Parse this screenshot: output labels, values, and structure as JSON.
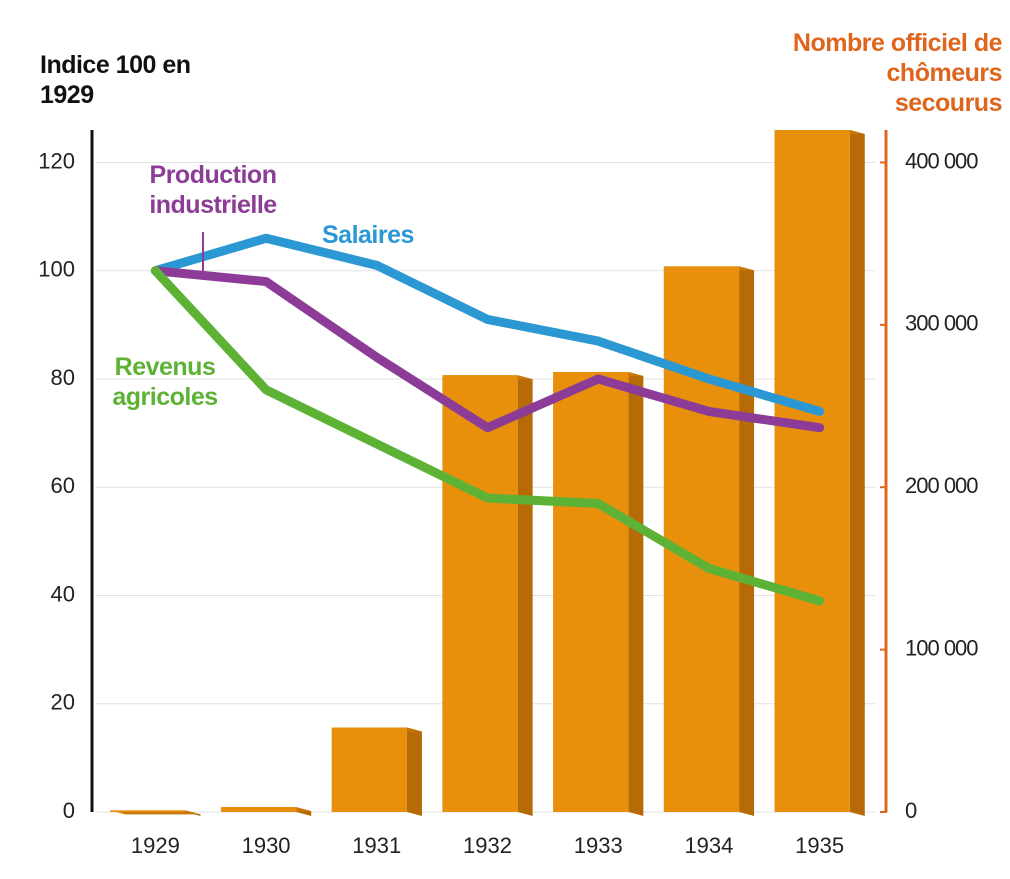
{
  "chart_data": {
    "type": "bar_line",
    "y_title": "Indice 100 en 1929",
    "y2_title": "Nombre officiel de chômeurs secourus",
    "categories": [
      "1929",
      "1930",
      "1931",
      "1932",
      "1933",
      "1934",
      "1935"
    ],
    "bars": {
      "axis": "y2",
      "color": "#e8900c",
      "values": [
        1000,
        3000,
        52000,
        269000,
        271000,
        336000,
        420000
      ]
    },
    "series": [
      {
        "name": "Salaires",
        "color": "#2b98d4",
        "values": [
          100,
          106,
          101,
          91,
          87,
          80,
          74
        ]
      },
      {
        "name": "Production industrielle",
        "color": "#8c3c97",
        "values": [
          100,
          98,
          84,
          71,
          80,
          74,
          71
        ]
      },
      {
        "name": "Revenus agricoles",
        "color": "#5db236",
        "values": [
          100,
          78,
          68,
          58,
          57,
          45,
          39
        ]
      }
    ],
    "ylim": [
      0,
      126
    ],
    "yticks": [
      0,
      20,
      40,
      60,
      80,
      100,
      120
    ],
    "y2lim": [
      0,
      420000
    ],
    "y2ticks": [
      0,
      {
        "value": 100000,
        "label": "100 000"
      },
      {
        "value": 200000,
        "label": "200 000"
      },
      {
        "value": 300000,
        "label": "300 000"
      },
      {
        "value": 400000,
        "label": "400 000"
      }
    ],
    "grid": true
  }
}
